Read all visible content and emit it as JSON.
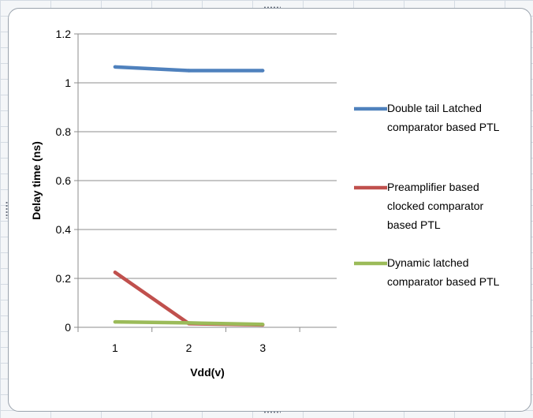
{
  "chart_data": {
    "type": "line",
    "title": "",
    "xlabel": "Vdd(v)",
    "ylabel": "Delay time (ns)",
    "categories": [
      "1",
      "2",
      "3"
    ],
    "ylim": [
      0,
      1.2
    ],
    "yticks": [
      "0",
      "0.2",
      "0.4",
      "0.6",
      "0.8",
      "1",
      "1.2"
    ],
    "grid": "horizontal",
    "legend_position": "right",
    "series": [
      {
        "name": "Double tail Latched comparator based PTL",
        "legend_lines": [
          "Double tail  Latched",
          "comparator based PTL"
        ],
        "color": "#4f81bd",
        "values": [
          1.065,
          1.05,
          1.05
        ]
      },
      {
        "name": "Preamplifier based clocked comparator based PTL",
        "legend_lines": [
          "Preamplifier based",
          "clocked comparator",
          "based PTL"
        ],
        "color": "#c0504d",
        "values": [
          0.225,
          0.015,
          0.01
        ]
      },
      {
        "name": "Dynamic latched comparator based PTL",
        "legend_lines": [
          "Dynamic latched",
          "comparator based PTL"
        ],
        "color": "#9bbb59",
        "values": [
          0.022,
          0.018,
          0.012
        ]
      }
    ]
  }
}
